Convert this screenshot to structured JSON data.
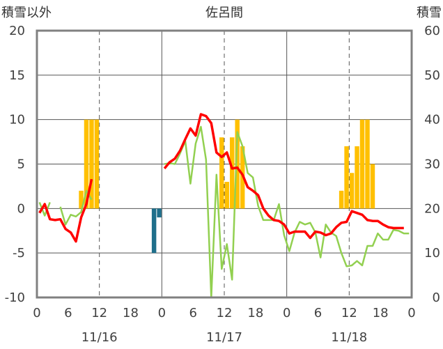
{
  "chart_data": {
    "type": "bar+line",
    "title": "佐呂間",
    "left_axis_title": "積雪以外",
    "right_axis_title": "積雪",
    "left_axis": {
      "min": -10,
      "max": 20,
      "ticks": [
        -10,
        -5,
        0,
        5,
        10,
        15,
        20
      ]
    },
    "right_axis": {
      "min": 0,
      "max": 60,
      "ticks": [
        0,
        10,
        20,
        30,
        40,
        50,
        60
      ]
    },
    "x_hour_ticks": [
      "0",
      "6",
      "12",
      "18",
      "0",
      "6",
      "12",
      "18",
      "0",
      "6",
      "12",
      "18",
      "0"
    ],
    "days": [
      "11/16",
      "11/17",
      "11/18"
    ],
    "grid": "dashed vertical at 12h, solid vertical at 0h, horizontal at 0",
    "hours": 72,
    "bars_left_axis": {
      "color": "#ffc000",
      "values": [
        null,
        null,
        null,
        null,
        null,
        null,
        null,
        null,
        2,
        10,
        10,
        10,
        null,
        null,
        null,
        null,
        null,
        null,
        null,
        null,
        null,
        null,
        null,
        null,
        null,
        null,
        null,
        null,
        null,
        null,
        null,
        null,
        null,
        null,
        null,
        null,
        null,
        null,
        null,
        null,
        null,
        null,
        null,
        null,
        null,
        null,
        null,
        null,
        null,
        null,
        null,
        null,
        null,
        null,
        null,
        null,
        null,
        null,
        2,
        7,
        4,
        7,
        10,
        10,
        5,
        null,
        null,
        null,
        null,
        null,
        null,
        null
      ]
    },
    "bars_negative": {
      "color": "#1f6f8b",
      "values": [
        null,
        null,
        null,
        null,
        null,
        null,
        null,
        null,
        null,
        null,
        null,
        null,
        null,
        null,
        null,
        null,
        null,
        null,
        null,
        null,
        null,
        null,
        -5,
        -1,
        null,
        null,
        null,
        null,
        null,
        null,
        null,
        null,
        null,
        null,
        null,
        null,
        null,
        null,
        null,
        null,
        null,
        null,
        null,
        null,
        null,
        null,
        null,
        null,
        null,
        null,
        null,
        null,
        null,
        null,
        null,
        null,
        null,
        null,
        null,
        null,
        null,
        null,
        null,
        null,
        null,
        null,
        null,
        null,
        null,
        null,
        null,
        null
      ]
    },
    "bars_fill_right_axis": {
      "color": "#ffc000",
      "values": [
        null,
        null,
        null,
        null,
        null,
        null,
        null,
        null,
        null,
        null,
        null,
        null,
        null,
        null,
        null,
        null,
        null,
        null,
        null,
        null,
        null,
        null,
        null,
        null,
        null,
        null,
        null,
        null,
        null,
        null,
        null,
        null,
        null,
        null,
        null,
        null,
        null,
        null,
        null,
        null,
        null,
        null,
        null,
        null,
        null,
        null,
        null,
        null,
        null,
        null,
        null,
        null,
        null,
        null,
        null,
        null,
        null,
        null,
        null,
        null,
        null,
        null,
        null,
        null,
        null,
        null,
        null,
        null,
        null,
        null,
        null,
        null
      ]
    },
    "bars_snow_17": {
      "color": "#ffc000",
      "hours_from_start": [
        35,
        36,
        37,
        38,
        39,
        40
      ],
      "values": [
        8,
        3,
        8,
        10,
        7,
        0
      ]
    },
    "series": [
      {
        "color": "#ff0000",
        "values": [
          -0.5,
          0.5,
          -1.2,
          -1.3,
          -1.2,
          -2.3,
          -2.7,
          -3.7,
          -1.0,
          0.5,
          3.3,
          null,
          null,
          null,
          null,
          null,
          null,
          null,
          null,
          null,
          null,
          null,
          null,
          null,
          4.5,
          5.2,
          5.6,
          6.5,
          7.8,
          9.0,
          8.2,
          10.6,
          10.4,
          9.6,
          6.3,
          5.8,
          6.3,
          4.5,
          4.6,
          3.8,
          2.4,
          2.0,
          1.5,
          0.0,
          -0.8,
          -1.3,
          -1.4,
          -1.8,
          -2.8,
          -2.6,
          -2.6,
          -2.6,
          -3.3,
          -2.6,
          -2.7,
          -3.0,
          -2.8,
          -2.1,
          -1.6,
          -1.5,
          -0.3,
          -0.5,
          -0.7,
          -1.3,
          -1.4,
          -1.4,
          -1.8,
          -2.1,
          -2.2,
          -2.2,
          -2.2,
          null
        ]
      },
      {
        "color": "#92d050",
        "values": [
          0.7,
          -0.8,
          0.7,
          null,
          0.2,
          -1.8,
          -0.7,
          -0.9,
          -0.4,
          2.0,
          1.0,
          null,
          null,
          null,
          null,
          null,
          null,
          null,
          null,
          null,
          null,
          null,
          null,
          null,
          5.0,
          5.1,
          5.0,
          6.2,
          7.6,
          2.8,
          7.3,
          9.2,
          5.5,
          -10.0,
          3.8,
          -6.8,
          -4.0,
          -8.0,
          8.6,
          7.0,
          4.0,
          3.5,
          0.3,
          -1.3,
          -1.3,
          -1.3,
          0.5,
          -3.0,
          -4.8,
          -2.7,
          -1.5,
          -1.8,
          -1.6,
          -2.7,
          -5.5,
          -1.8,
          -2.7,
          -3.1,
          -5.0,
          -6.5,
          -6.4,
          -5.9,
          -6.4,
          -4.2,
          -4.2,
          -2.8,
          -3.5,
          -3.5,
          -2.4,
          -2.5,
          -2.8,
          -2.8
        ]
      },
      {
        "color": "#7030a0",
        "values_right_axis": [
          0,
          0,
          0,
          0,
          0,
          0,
          0,
          0,
          0,
          0,
          0,
          0,
          null,
          null,
          null,
          null,
          null,
          null,
          null,
          null,
          null,
          null,
          null,
          null,
          0,
          0,
          0,
          0,
          0,
          0,
          0,
          0,
          0,
          0,
          0,
          0,
          0,
          0,
          0,
          0,
          0,
          0,
          0,
          0,
          0,
          0,
          0,
          0,
          0,
          0,
          0,
          0,
          0,
          0,
          0,
          0,
          0,
          0,
          0,
          0,
          0,
          0,
          0,
          0,
          0,
          0,
          0,
          0,
          0,
          0,
          0,
          0
        ]
      }
    ]
  }
}
